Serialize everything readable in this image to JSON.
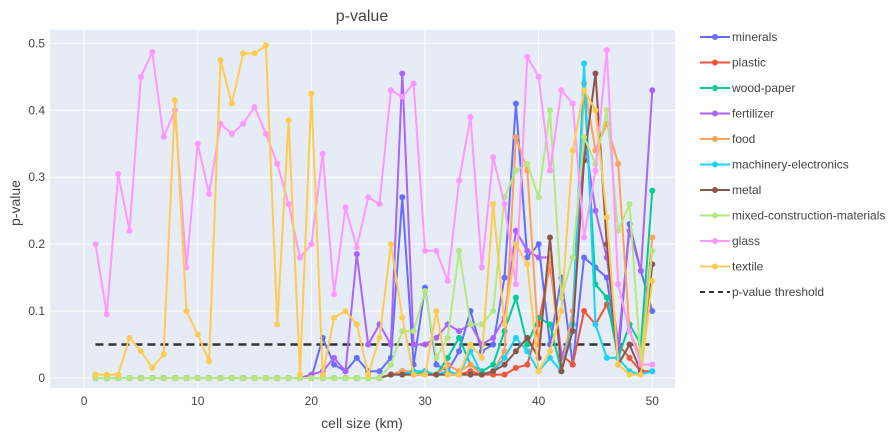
{
  "chart_data": {
    "type": "line",
    "title": "p-value",
    "xlabel": "cell size (km)",
    "ylabel": "p-value",
    "xlim": [
      -3,
      52
    ],
    "ylim": [
      -0.015,
      0.52
    ],
    "x_ticks": [
      0,
      10,
      20,
      30,
      40,
      50
    ],
    "y_ticks": [
      0,
      0.1,
      0.2,
      0.3,
      0.4,
      0.5
    ],
    "x_tick_labels": [
      "0",
      "10",
      "20",
      "30",
      "40",
      "50"
    ],
    "y_tick_labels": [
      "0",
      "0.1",
      "0.2",
      "0.3",
      "0.4",
      "0.5"
    ],
    "grid": true,
    "legend_position": "right",
    "plot_background": "#e5ecf6",
    "x": [
      1,
      2,
      3,
      4,
      5,
      6,
      7,
      8,
      9,
      10,
      11,
      12,
      13,
      14,
      15,
      16,
      17,
      18,
      19,
      20,
      21,
      22,
      23,
      24,
      25,
      26,
      27,
      28,
      29,
      30,
      31,
      32,
      33,
      34,
      35,
      36,
      37,
      38,
      39,
      40,
      41,
      42,
      43,
      44,
      45,
      46,
      47,
      48,
      49,
      50
    ],
    "series": [
      {
        "name": "minerals",
        "color": "#636efa",
        "values": [
          0,
          0,
          0,
          0,
          0,
          0,
          0,
          0,
          0,
          0,
          0,
          0,
          0,
          0,
          0,
          0,
          0,
          0,
          0,
          0,
          0.06,
          0.02,
          0.01,
          0.03,
          0.01,
          0.01,
          0.03,
          0.27,
          0.02,
          0.135,
          0.02,
          0.01,
          0.04,
          0.1,
          0.04,
          0.05,
          0.15,
          0.41,
          0.18,
          0.2,
          0.05,
          0.15,
          0.02,
          0.18,
          0.165,
          0.15,
          0.03,
          0.23,
          0.16,
          0.1
        ]
      },
      {
        "name": "plastic",
        "color": "#ef553b",
        "values": [
          0,
          0,
          0,
          0,
          0,
          0,
          0,
          0,
          0,
          0,
          0,
          0,
          0,
          0,
          0,
          0,
          0,
          0,
          0,
          0,
          0,
          0,
          0,
          0,
          0,
          0,
          0.005,
          0.01,
          0.005,
          0.005,
          0.005,
          0.005,
          0.005,
          0.01,
          0.005,
          0.005,
          0.005,
          0.015,
          0.02,
          0.08,
          0.17,
          0.035,
          0.02,
          0.1,
          0.08,
          0.11,
          0.05,
          0.03,
          0.01,
          0.01
        ]
      },
      {
        "name": "wood-paper",
        "color": "#00cc96",
        "values": [
          0,
          0,
          0,
          0,
          0,
          0,
          0,
          0,
          0,
          0,
          0,
          0,
          0,
          0,
          0,
          0,
          0,
          0,
          0,
          0,
          0,
          0,
          0,
          0,
          0,
          0,
          0.005,
          0.01,
          0.005,
          0.01,
          0.005,
          0.03,
          0.06,
          0.02,
          0.01,
          0.02,
          0.07,
          0.12,
          0.05,
          0.09,
          0.08,
          0.01,
          0.08,
          0.44,
          0.14,
          0.12,
          0.03,
          0.08,
          0.05,
          0.28
        ]
      },
      {
        "name": "fertilizer",
        "color": "#ab63fa",
        "values": [
          0,
          0,
          0,
          0,
          0,
          0,
          0,
          0,
          0,
          0,
          0,
          0,
          0,
          0,
          0,
          0,
          0,
          0,
          0,
          0.005,
          0.01,
          0.03,
          0.01,
          0.185,
          0.05,
          0.08,
          0.05,
          0.455,
          0.05,
          0.05,
          0.06,
          0.08,
          0.07,
          0.08,
          0.05,
          0.06,
          0.09,
          0.22,
          0.19,
          0.18,
          0.18,
          0.03,
          0.08,
          0.36,
          0.25,
          0.18,
          0.05,
          0.22,
          0.16,
          0.43
        ]
      },
      {
        "name": "food",
        "color": "#ffa15a",
        "values": [
          0,
          0,
          0,
          0,
          0,
          0,
          0,
          0,
          0,
          0,
          0,
          0,
          0,
          0,
          0,
          0,
          0,
          0,
          0,
          0,
          0,
          0,
          0,
          0,
          0,
          0,
          0.005,
          0.01,
          0.01,
          0.01,
          0.005,
          0.02,
          0.01,
          0.02,
          0.005,
          0.01,
          0.04,
          0.36,
          0.31,
          0.05,
          0.18,
          0.01,
          0.1,
          0.44,
          0.34,
          0.38,
          0.32,
          0.07,
          0.03,
          0.21
        ]
      },
      {
        "name": "machinery-electronics",
        "color": "#19d3f3",
        "values": [
          0,
          0,
          0,
          0,
          0,
          0,
          0,
          0,
          0,
          0,
          0,
          0,
          0,
          0,
          0,
          0,
          0,
          0,
          0,
          0,
          0,
          0,
          0,
          0,
          0,
          0,
          0.005,
          0.005,
          0.01,
          0.01,
          0.005,
          0.01,
          0.005,
          0.04,
          0.005,
          0.01,
          0.03,
          0.06,
          0.04,
          0.01,
          0.03,
          0.01,
          0.08,
          0.47,
          0.08,
          0.03,
          0.03,
          0.01,
          0.005,
          0.01
        ]
      },
      {
        "name": "metal",
        "color": "#8c564b",
        "values": [
          0,
          0,
          0,
          0,
          0,
          0,
          0,
          0,
          0,
          0,
          0,
          0,
          0,
          0,
          0,
          0,
          0,
          0,
          0,
          0,
          0,
          0,
          0,
          0,
          0,
          0,
          0.005,
          0.005,
          0.005,
          0.005,
          0.005,
          0.005,
          0.005,
          0.005,
          0.005,
          0.01,
          0.02,
          0.04,
          0.06,
          0.03,
          0.21,
          0.01,
          0.07,
          0.325,
          0.455,
          0.2,
          0.02,
          0.05,
          0.01,
          0.17
        ]
      },
      {
        "name": "mixed-construction-materials",
        "color": "#b6e880",
        "values": [
          0,
          0,
          0,
          0,
          0,
          0,
          0,
          0,
          0,
          0,
          0,
          0,
          0,
          0,
          0,
          0,
          0,
          0,
          0,
          0,
          0,
          0,
          0,
          0,
          0,
          0,
          0.02,
          0.07,
          0.07,
          0.13,
          0.03,
          0.06,
          0.19,
          0.08,
          0.08,
          0.1,
          0.27,
          0.31,
          0.32,
          0.27,
          0.4,
          0.12,
          0.18,
          0.36,
          0.32,
          0.4,
          0.22,
          0.26,
          0.02,
          0.19
        ]
      },
      {
        "name": "glass",
        "color": "#ff97ff",
        "values": [
          0.2,
          0.095,
          0.305,
          0.22,
          0.45,
          0.487,
          0.36,
          0.4,
          0.165,
          0.35,
          0.275,
          0.38,
          0.365,
          0.38,
          0.405,
          0.365,
          0.32,
          0.26,
          0.18,
          0.2,
          0.335,
          0.125,
          0.255,
          0.195,
          0.27,
          0.26,
          0.43,
          0.42,
          0.44,
          0.19,
          0.19,
          0.145,
          0.295,
          0.39,
          0.165,
          0.33,
          0.26,
          0.14,
          0.48,
          0.45,
          0.31,
          0.43,
          0.41,
          0.21,
          0.31,
          0.49,
          0.14,
          0.07,
          0.02,
          0.02
        ]
      },
      {
        "name": "textile",
        "color": "#fecb52",
        "values": [
          0.005,
          0.005,
          0.005,
          0.06,
          0.04,
          0.015,
          0.035,
          0.415,
          0.1,
          0.065,
          0.025,
          0.475,
          0.41,
          0.485,
          0.485,
          0.497,
          0.08,
          0.385,
          0.005,
          0.425,
          0.005,
          0.09,
          0.1,
          0.08,
          0.005,
          0.06,
          0.2,
          0.09,
          0.005,
          0.005,
          0.1,
          0.005,
          0.005,
          0.05,
          0.03,
          0.26,
          0.08,
          0.2,
          0.17,
          0.01,
          0.04,
          0.1,
          0.34,
          0.43,
          0.4,
          0.24,
          0.02,
          0.005,
          0.005,
          0.145
        ]
      }
    ],
    "threshold": {
      "name": "p-value threshold",
      "value": 0.05,
      "x_range": [
        1,
        50
      ],
      "color": "#333333"
    }
  }
}
